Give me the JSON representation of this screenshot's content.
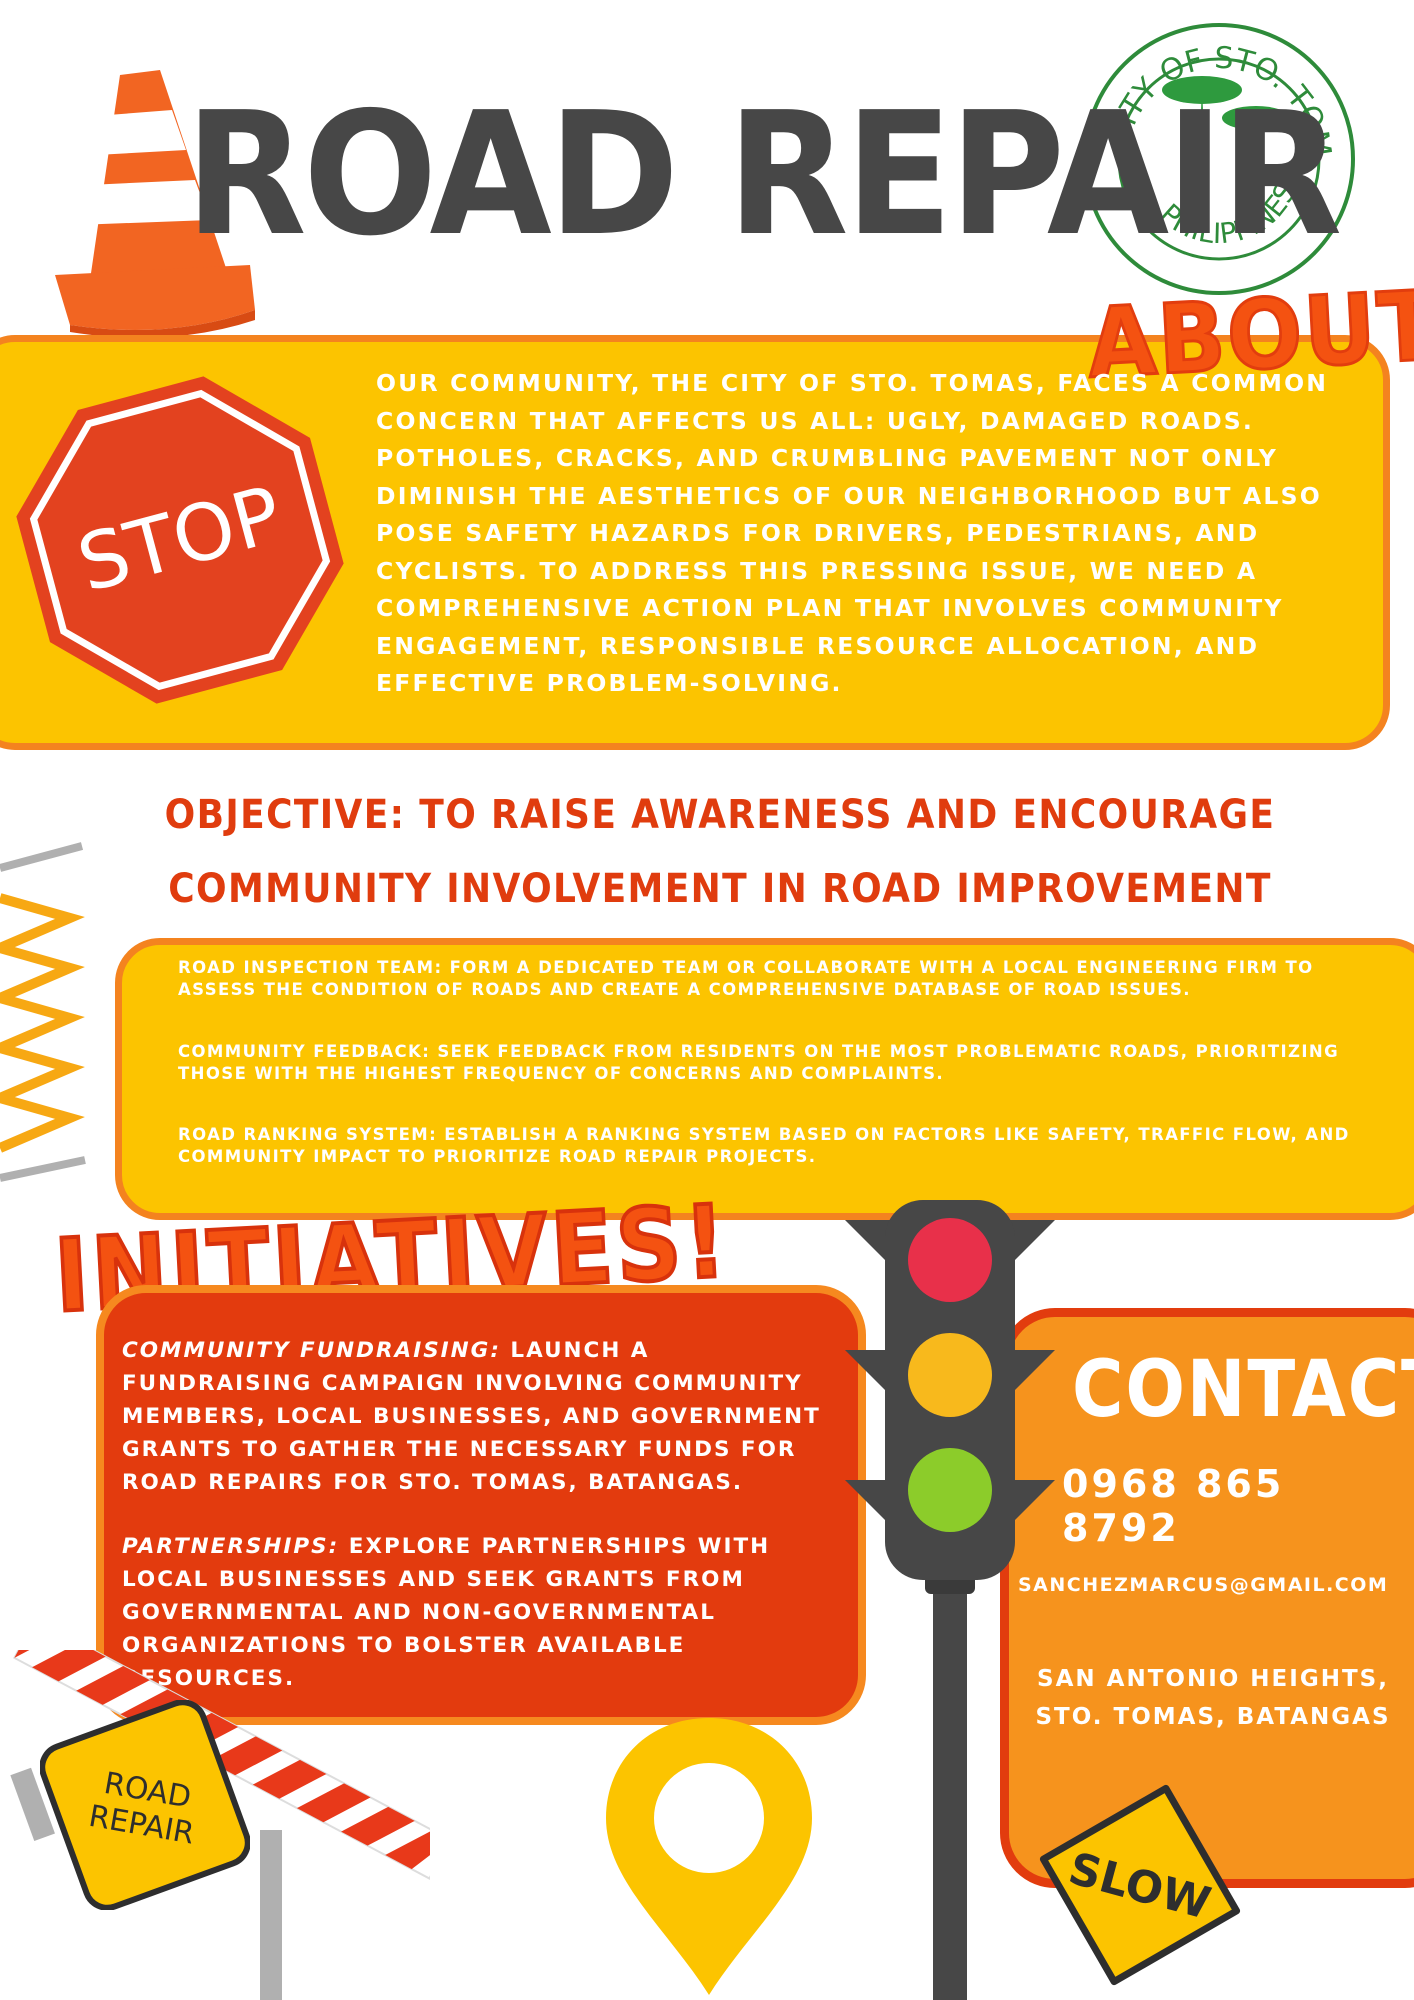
{
  "title": "ROAD REPAIR",
  "seal": {
    "top_text": "CITY OF STO. TOMAS",
    "bottom_text": "PHILIPPINES"
  },
  "about": {
    "heading": "ABOUT",
    "stop_sign": "STOP",
    "body": "Our community, the City of Sto. Tomas, faces a common concern that affects us all: ugly, damaged roads. Potholes, cracks, and crumbling pavement not only diminish the aesthetics of our neighborhood but also pose safety hazards for drivers, pedestrians, and cyclists. To address this pressing issue, we need a comprehensive action plan that involves community engagement, responsible resource allocation, and effective problem-solving."
  },
  "objective": "OBJECTIVE: TO RAISE AWARENESS AND ENCOURAGE COMMUNITY INVOLVEMENT IN ROAD IMPROVEMENT INITIATIVES.",
  "plan": [
    "ROAD INSPECTION TEAM: FORM A DEDICATED TEAM OR COLLABORATE WITH A LOCAL ENGINEERING FIRM TO ASSESS THE CONDITION OF ROADS AND CREATE A COMPREHENSIVE DATABASE OF ROAD ISSUES.",
    "COMMUNITY FEEDBACK: SEEK FEEDBACK FROM RESIDENTS ON THE MOST PROBLEMATIC ROADS, PRIORITIZING THOSE WITH THE HIGHEST FREQUENCY OF CONCERNS AND COMPLAINTS.",
    "ROAD RANKING SYSTEM: ESTABLISH A RANKING SYSTEM BASED ON FACTORS LIKE SAFETY, TRAFFIC FLOW, AND COMMUNITY IMPACT TO PRIORITIZE ROAD REPAIR PROJECTS."
  ],
  "initiatives": {
    "heading": "INITIATIVES!",
    "items": [
      {
        "lead": "COMMUNITY FUNDRAISING:",
        "text": " LAUNCH A FUNDRAISING CAMPAIGN INVOLVING COMMUNITY MEMBERS, LOCAL BUSINESSES, AND GOVERNMENT GRANTS TO GATHER THE NECESSARY FUNDS FOR ROAD REPAIRS FOR STO. TOMAS, BATANGAS."
      },
      {
        "lead": "PARTNERSHIPS:",
        "text": " EXPLORE PARTNERSHIPS WITH LOCAL BUSINESSES AND SEEK GRANTS FROM GOVERNMENTAL AND NON-GOVERNMENTAL ORGANIZATIONS TO BOLSTER AVAILABLE RESOURCES."
      }
    ]
  },
  "contact": {
    "heading": "CONTACT",
    "phone": "0968 865 8792",
    "email": "SANCHEZMARCUS@GMAIL.COM",
    "address_line1": "SAN ANTONIO HEIGHTS,",
    "address_line2": "STO. TOMAS, BATANGAS"
  },
  "signs": {
    "road_repair_line1": "ROAD",
    "road_repair_line2": "REPAIR",
    "slow": "SLOW"
  },
  "colors": {
    "yellow": "#fcc400",
    "orange": "#f4831f",
    "red": "#e33b0e",
    "dark_gray": "#474747"
  }
}
